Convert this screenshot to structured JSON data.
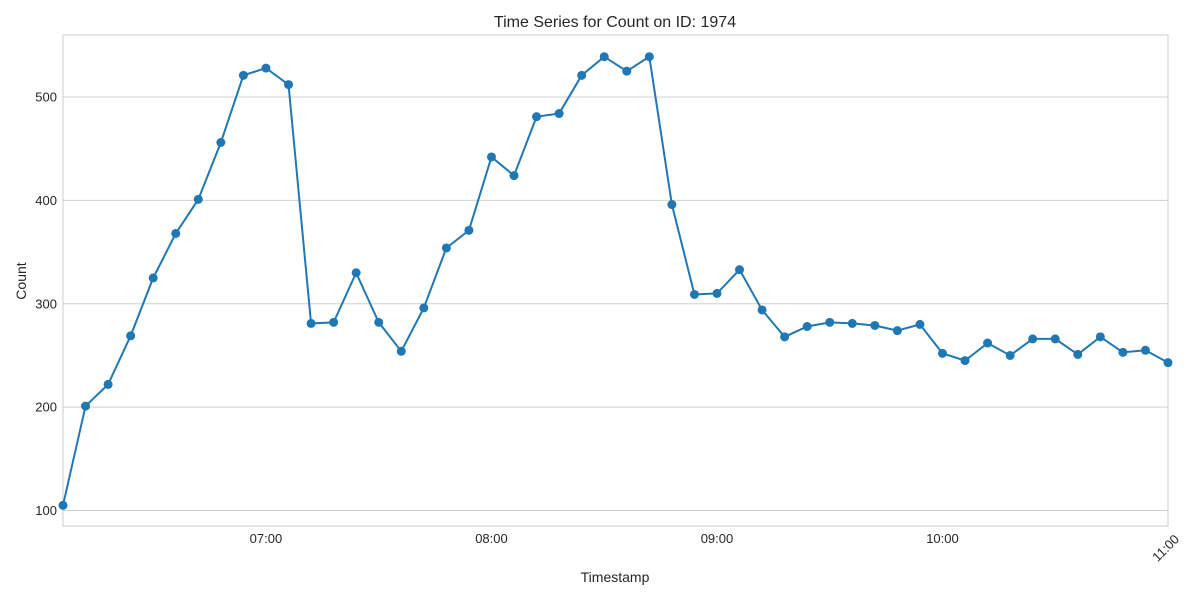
{
  "chart_data": {
    "type": "line",
    "title": "Time Series for Count on ID: 1974",
    "xlabel": "Timestamp",
    "ylabel": "Count",
    "x_tick_labels": [
      "07:00",
      "08:00",
      "09:00",
      "10:00",
      "11:00"
    ],
    "y_ticks": [
      100,
      200,
      300,
      400,
      500
    ],
    "xlim": [
      "06:06",
      "11:00"
    ],
    "ylim": [
      85,
      560
    ],
    "grid": "horizontal",
    "color": "#1f77b4",
    "x": [
      "06:06",
      "06:12",
      "06:18",
      "06:24",
      "06:30",
      "06:36",
      "06:42",
      "06:48",
      "06:54",
      "07:00",
      "07:06",
      "07:12",
      "07:18",
      "07:24",
      "07:30",
      "07:36",
      "07:42",
      "07:48",
      "07:54",
      "08:00",
      "08:06",
      "08:12",
      "08:18",
      "08:24",
      "08:30",
      "08:36",
      "08:42",
      "08:48",
      "08:54",
      "09:00",
      "09:06",
      "09:12",
      "09:18",
      "09:24",
      "09:30",
      "09:36",
      "09:42",
      "09:48",
      "09:54",
      "10:00",
      "10:06",
      "10:12",
      "10:18",
      "10:24",
      "10:30",
      "10:36",
      "10:42",
      "10:48",
      "10:54",
      "11:00"
    ],
    "values": [
      105,
      201,
      222,
      269,
      325,
      368,
      401,
      456,
      521,
      528,
      512,
      281,
      282,
      330,
      282,
      254,
      296,
      354,
      371,
      442,
      424,
      481,
      484,
      521,
      539,
      525,
      539,
      396,
      309,
      310,
      333,
      294,
      268,
      278,
      282,
      281,
      279,
      274,
      280,
      252,
      245,
      262,
      250,
      266,
      266,
      251,
      268,
      253,
      255,
      243
    ]
  }
}
